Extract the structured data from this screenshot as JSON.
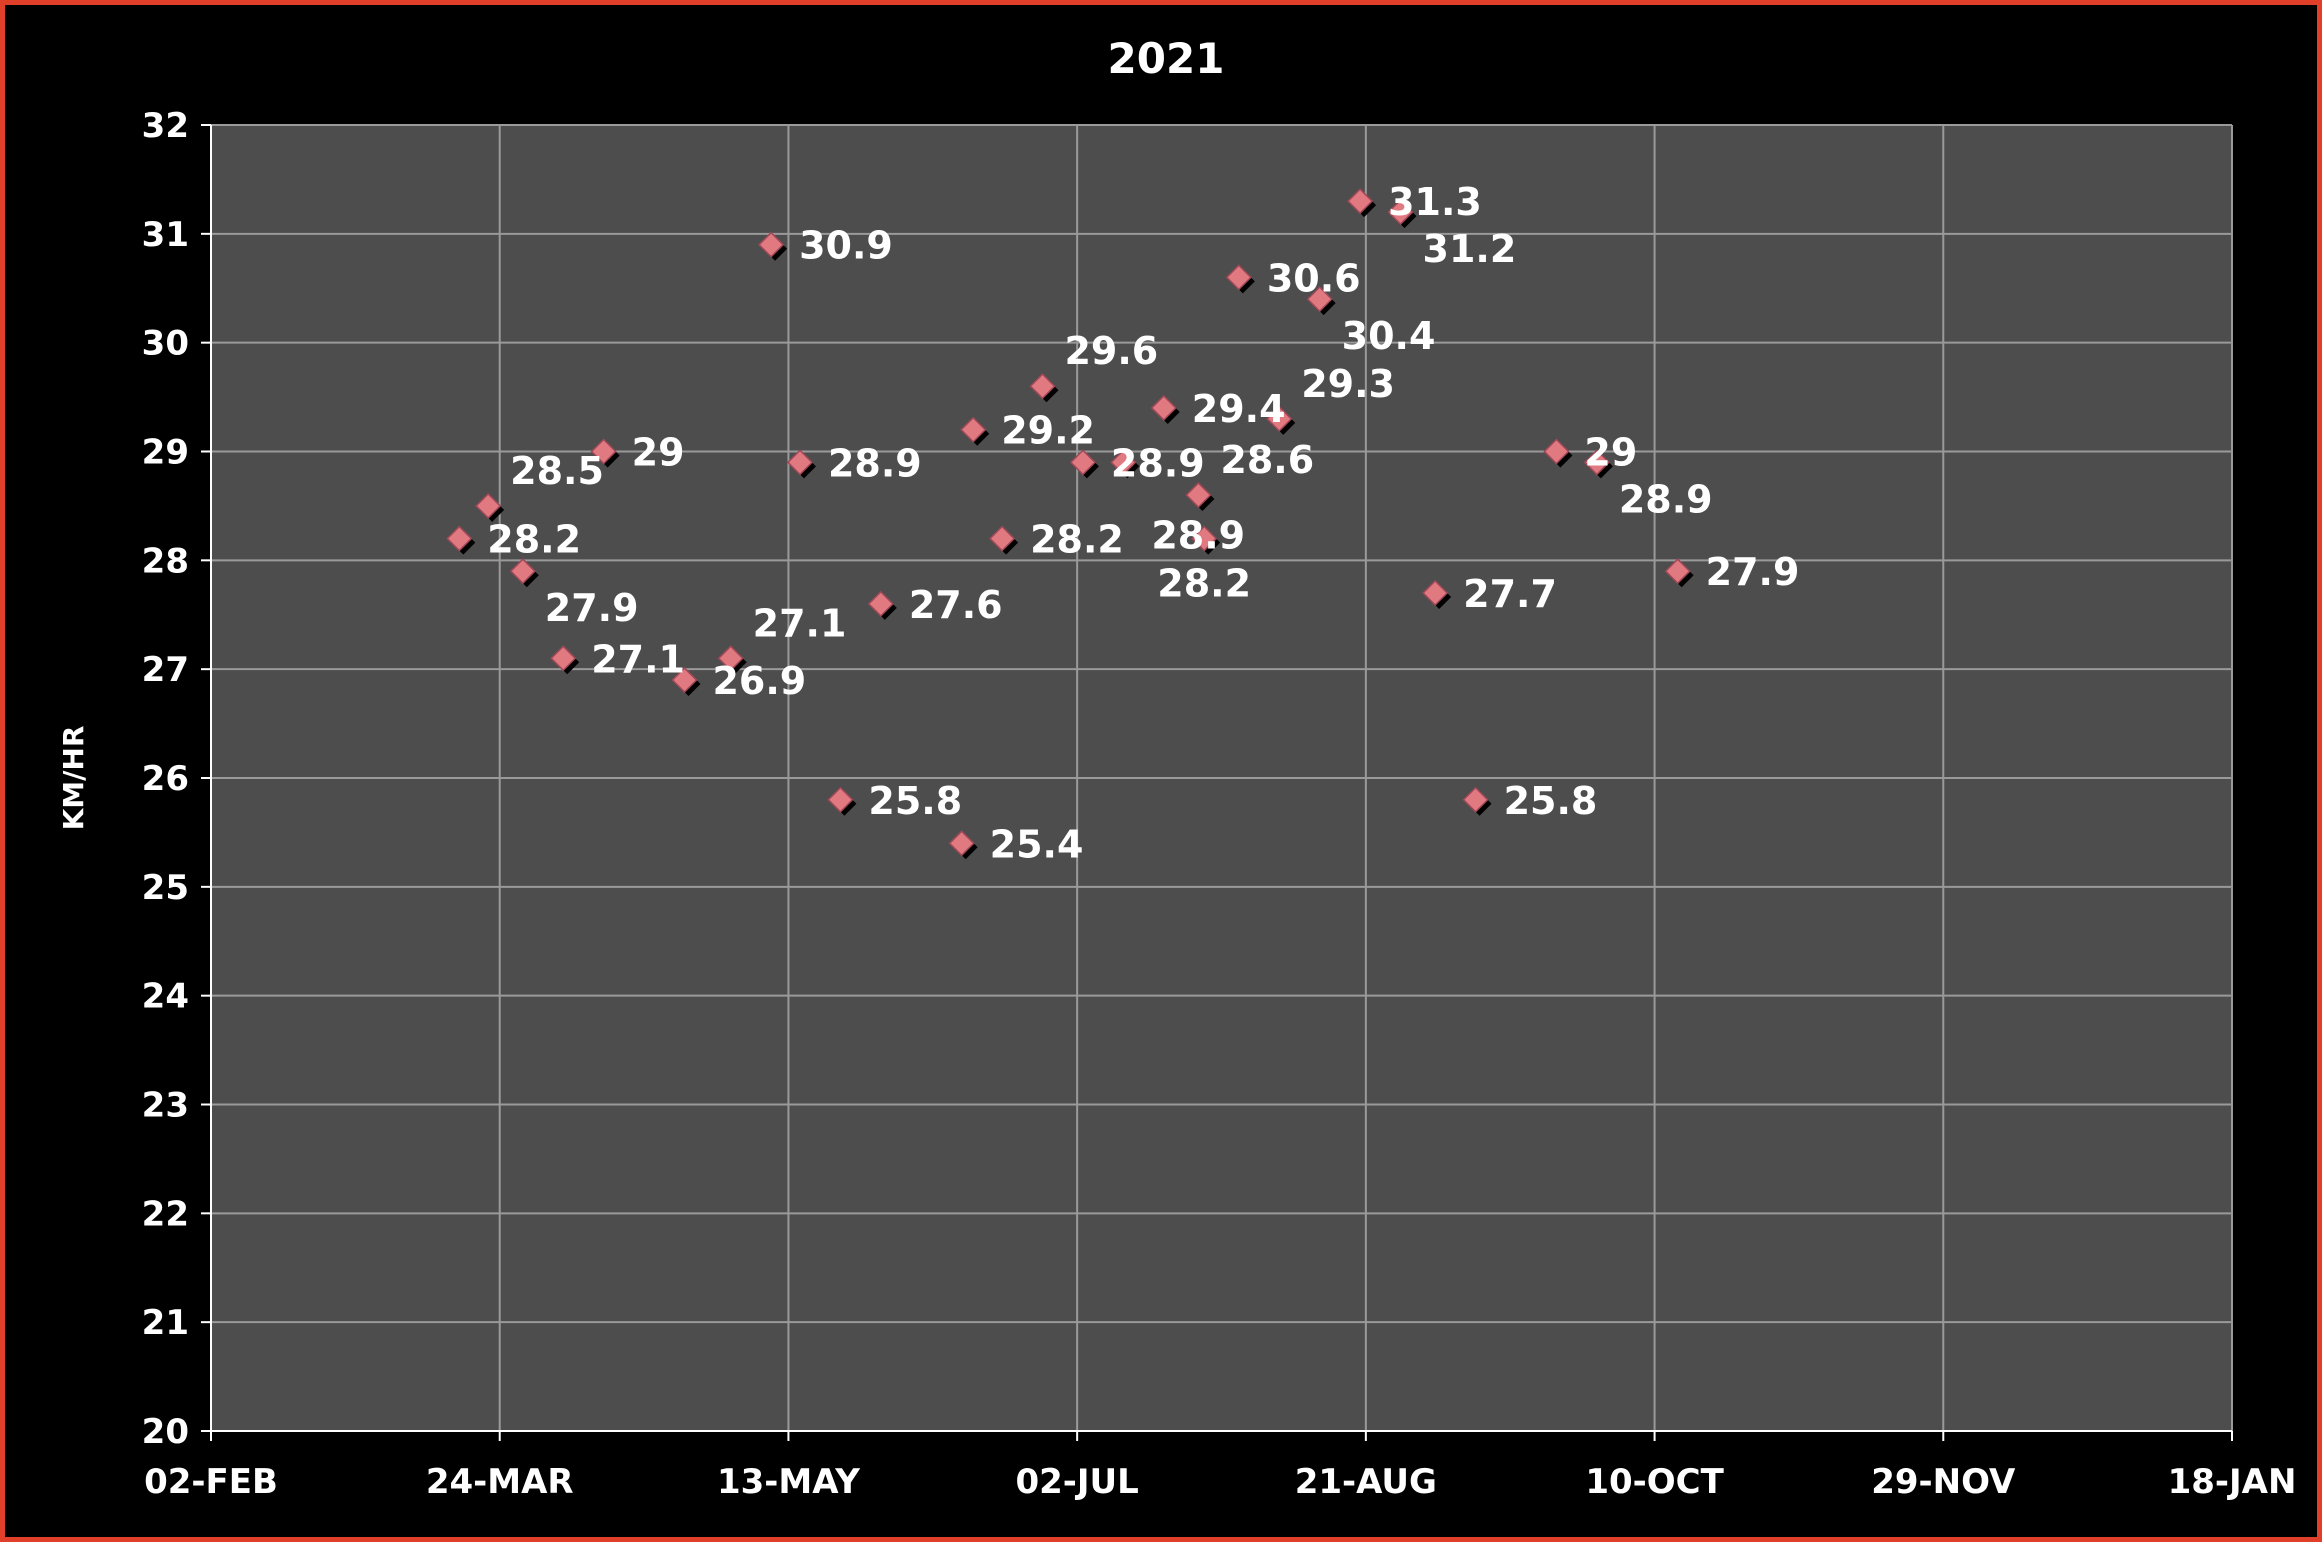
{
  "chart_data": {
    "type": "scatter",
    "title": "2021",
    "xlabel": "",
    "ylabel": "KM/HR",
    "xlim": [
      "2021-02-02",
      "2022-01-18"
    ],
    "ylim": [
      20,
      32
    ],
    "x_tick_labels": [
      "02-Feb",
      "24-Mar",
      "13-May",
      "02-Jul",
      "21-Aug",
      "10-Oct",
      "29-Nov",
      "18-Jan"
    ],
    "y_ticks": [
      20,
      21,
      22,
      23,
      24,
      25,
      26,
      27,
      28,
      29,
      30,
      31,
      32
    ],
    "grid": true,
    "legend": "none",
    "marker": "diamond",
    "marker_color": "#e07a80",
    "plot_background": "#4d4d4d",
    "points": [
      {
        "x": "2021-03-17",
        "y": 28.2
      },
      {
        "x": "2021-03-22",
        "y": 28.5
      },
      {
        "x": "2021-03-28",
        "y": 27.9
      },
      {
        "x": "2021-04-04",
        "y": 27.1
      },
      {
        "x": "2021-04-11",
        "y": 29.0
      },
      {
        "x": "2021-04-25",
        "y": 26.9
      },
      {
        "x": "2021-05-03",
        "y": 27.1
      },
      {
        "x": "2021-05-10",
        "y": 30.9
      },
      {
        "x": "2021-05-15",
        "y": 28.9
      },
      {
        "x": "2021-05-22",
        "y": 25.8
      },
      {
        "x": "2021-05-29",
        "y": 27.6
      },
      {
        "x": "2021-06-12",
        "y": 25.4
      },
      {
        "x": "2021-06-14",
        "y": 29.2
      },
      {
        "x": "2021-06-19",
        "y": 28.2
      },
      {
        "x": "2021-06-26",
        "y": 29.6
      },
      {
        "x": "2021-07-03",
        "y": 28.9
      },
      {
        "x": "2021-07-10",
        "y": 28.9
      },
      {
        "x": "2021-07-17",
        "y": 29.4
      },
      {
        "x": "2021-07-23",
        "y": 28.6
      },
      {
        "x": "2021-07-24",
        "y": 28.2
      },
      {
        "x": "2021-07-30",
        "y": 30.6
      },
      {
        "x": "2021-08-06",
        "y": 29.3
      },
      {
        "x": "2021-08-13",
        "y": 30.4
      },
      {
        "x": "2021-08-20",
        "y": 31.3
      },
      {
        "x": "2021-08-27",
        "y": 31.2
      },
      {
        "x": "2021-09-02",
        "y": 27.7
      },
      {
        "x": "2021-09-09",
        "y": 25.8
      },
      {
        "x": "2021-09-23",
        "y": 29.0
      },
      {
        "x": "2021-09-30",
        "y": 28.9
      },
      {
        "x": "2021-10-14",
        "y": 27.9
      }
    ]
  }
}
